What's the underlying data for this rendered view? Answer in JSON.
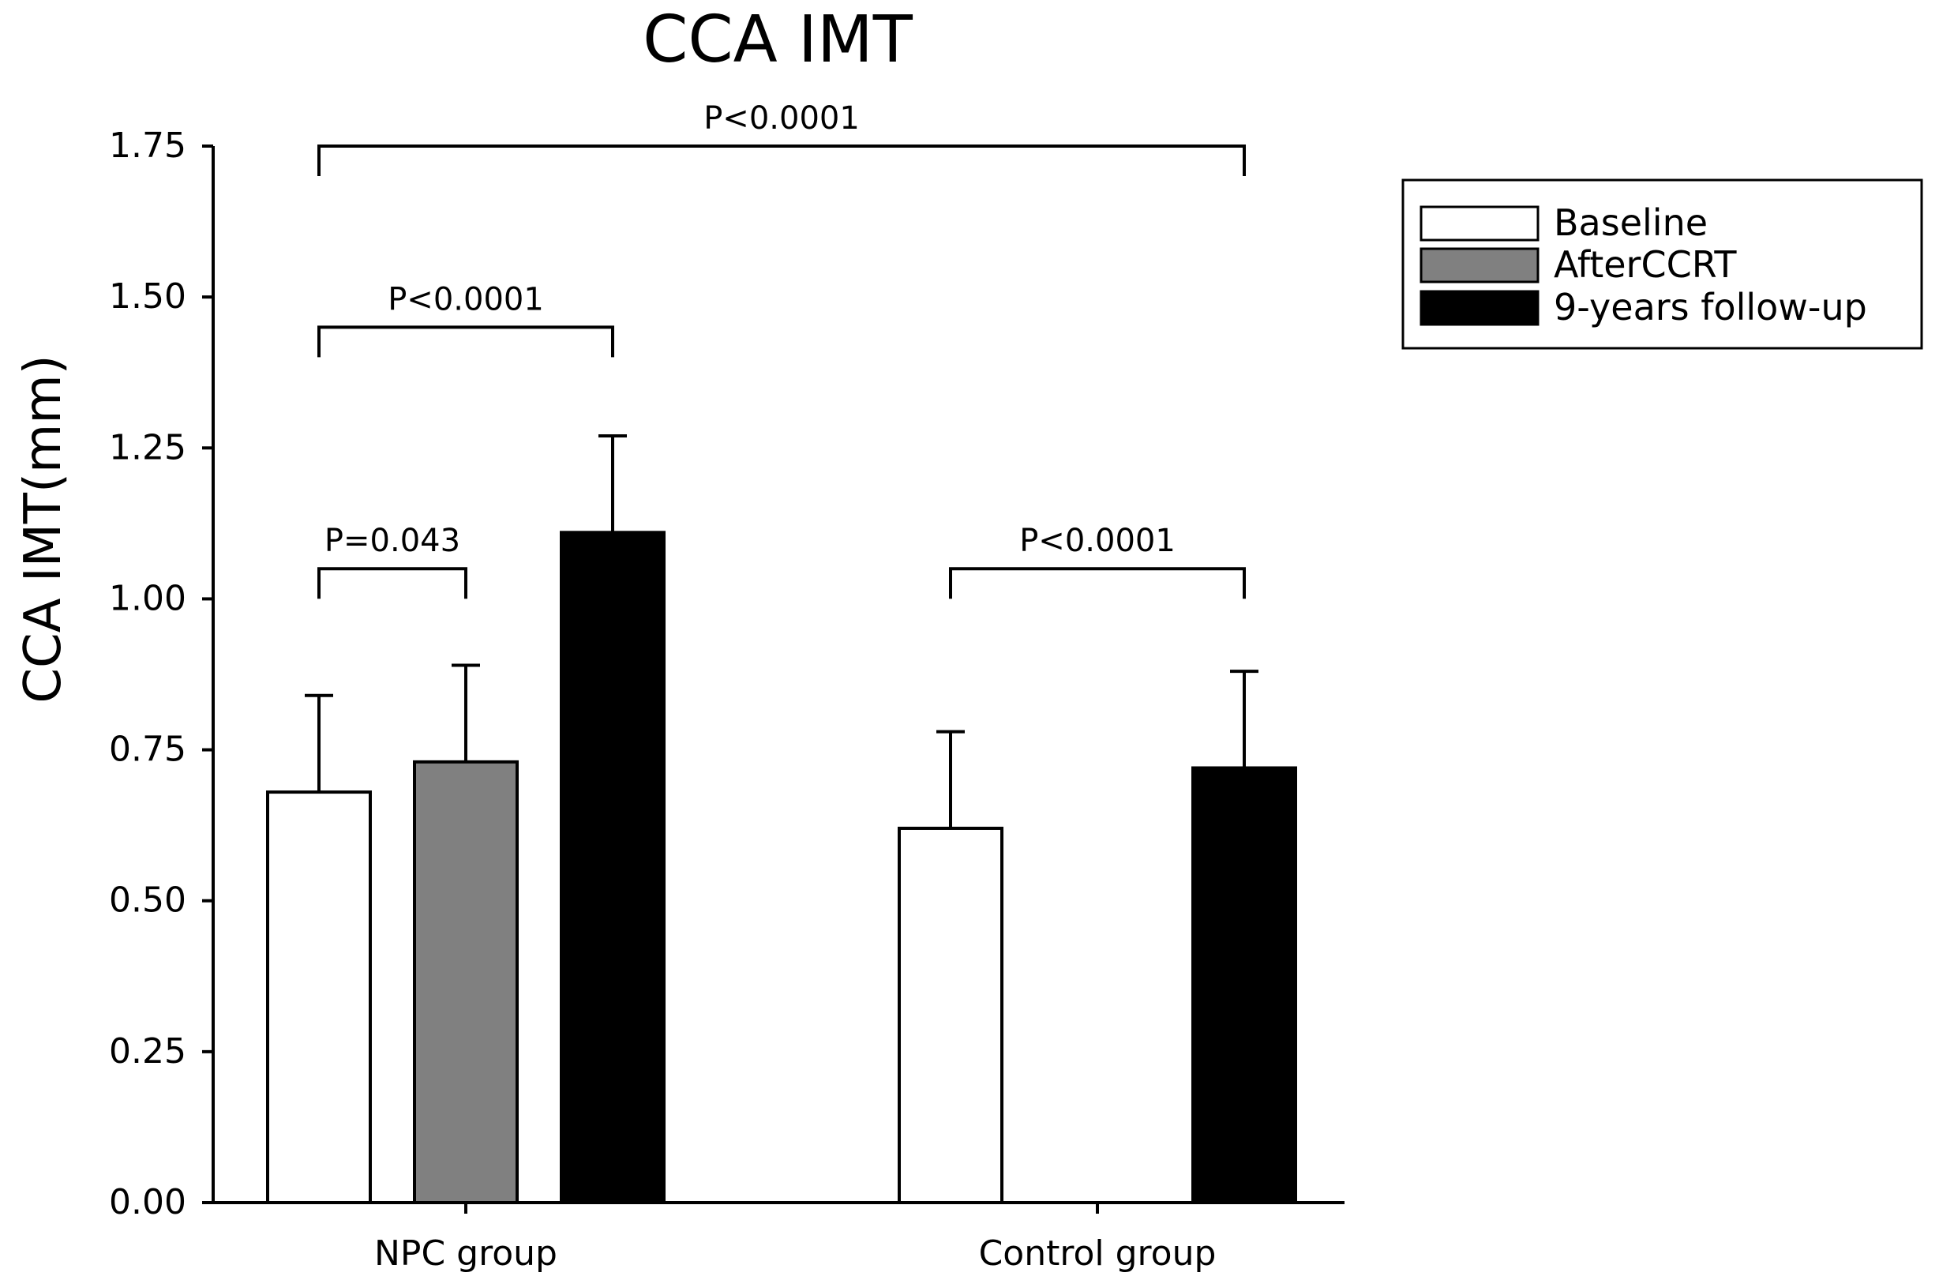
{
  "chart_data": {
    "type": "bar",
    "title": "CCA IMT",
    "xlabel": "",
    "ylabel": "CCA IMT(mm)",
    "ylim": [
      0,
      1.75
    ],
    "yticks": [
      "0.00",
      "0.25",
      "0.50",
      "0.75",
      "1.00",
      "1.25",
      "1.50",
      "1.75"
    ],
    "ytick_values": [
      0,
      0.25,
      0.5,
      0.75,
      1.0,
      1.25,
      1.5,
      1.75
    ],
    "grid": false,
    "legend_position": "top-right",
    "categories": [
      "NPC group",
      "Control group"
    ],
    "series": [
      {
        "name": "Baseline",
        "color": "#ffffff",
        "values": [
          0.68,
          0.62
        ],
        "errors": [
          0.16,
          0.16
        ]
      },
      {
        "name": "AfterCCRT",
        "color": "#808080",
        "values": [
          0.73,
          null
        ],
        "errors": [
          0.16,
          null
        ]
      },
      {
        "name": "9-years follow-up",
        "color": "#000000",
        "values": [
          1.11,
          0.72
        ],
        "errors": [
          0.16,
          0.16
        ]
      }
    ],
    "annotations": [
      {
        "text": "P=0.043",
        "from": [
          0,
          0
        ],
        "to": [
          0,
          1
        ],
        "level": 1.05
      },
      {
        "text": "P<0.0001",
        "from": [
          0,
          0
        ],
        "to": [
          0,
          2
        ],
        "level": 1.45
      },
      {
        "text": "P<0.0001",
        "from": [
          1,
          0
        ],
        "to": [
          1,
          2
        ],
        "level": 1.05
      },
      {
        "text": "P<0.0001",
        "from": [
          0,
          0
        ],
        "to": [
          1,
          2
        ],
        "level": 1.75
      }
    ]
  }
}
